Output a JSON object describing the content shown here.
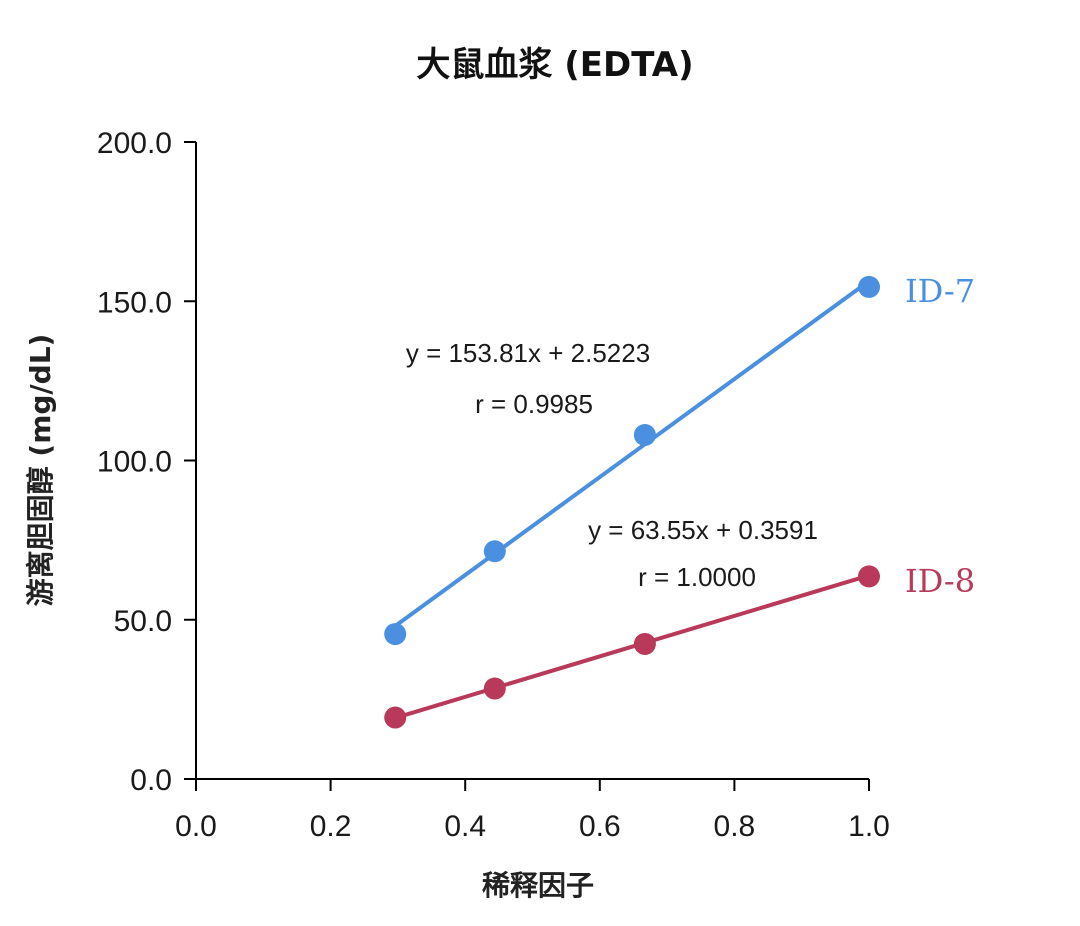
{
  "chart_data": {
    "type": "scatter",
    "title": "大鼠血浆 (EDTA)",
    "xlabel": "稀释因子",
    "ylabel": "游离胆固醇 (mg/dL)",
    "xlim": [
      0.0,
      1.0
    ],
    "ylim": [
      0.0,
      200.0
    ],
    "xticks": [
      "0.0",
      "0.2",
      "0.4",
      "0.6",
      "0.8",
      "1.0"
    ],
    "yticks": [
      "0.0",
      "50.0",
      "100.0",
      "150.0",
      "200.0"
    ],
    "grid": false,
    "series": [
      {
        "name": "ID-7",
        "color": "#4a8fe0",
        "x": [
          0.296,
          0.444,
          0.667,
          1.0
        ],
        "y": [
          45.5,
          71.5,
          108.0,
          154.5
        ],
        "equation": "y = 153.81x + 2.5223",
        "r": "r = 0.9985",
        "fit": {
          "slope": 153.81,
          "intercept": 2.5223
        }
      },
      {
        "name": "ID-8",
        "color": "#b8395a",
        "x": [
          0.296,
          0.444,
          0.667,
          1.0
        ],
        "y": [
          19.3,
          28.4,
          42.4,
          63.6
        ],
        "equation": "y = 63.55x + 0.3591",
        "r": "r = 1.0000",
        "fit": {
          "slope": 63.55,
          "intercept": 0.3591
        }
      }
    ]
  }
}
